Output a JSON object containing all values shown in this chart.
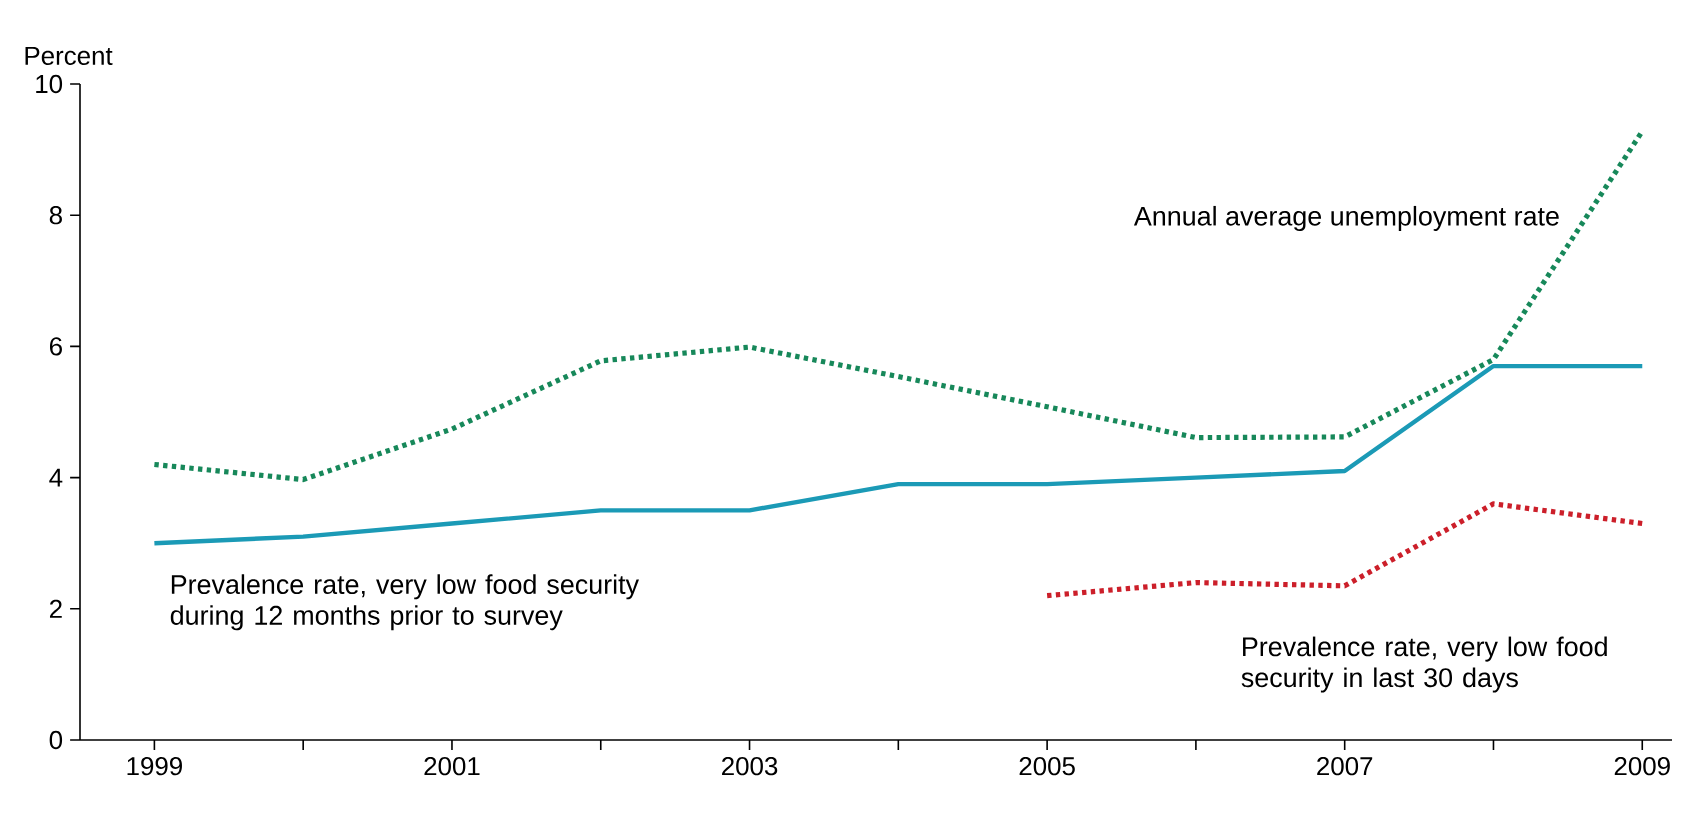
{
  "chart_data": {
    "type": "line",
    "ylabel": "Percent",
    "x": [
      1999,
      2000,
      2001,
      2002,
      2003,
      2004,
      2005,
      2006,
      2007,
      2008,
      2009
    ],
    "xlim": [
      1998.5,
      2009.2
    ],
    "ylim": [
      0,
      10
    ],
    "yticks": [
      0,
      2,
      4,
      6,
      8,
      10
    ],
    "xticks": [
      1999,
      {
        "value": 2000,
        "label": null
      },
      2001,
      {
        "value": 2002,
        "label": null
      },
      2003,
      {
        "value": 2004,
        "label": null
      },
      2005,
      {
        "value": 2006,
        "label": null
      },
      2007,
      {
        "value": 2008,
        "label": null
      },
      2009
    ],
    "grid": false,
    "series": [
      {
        "name": "Annual average unemployment rate",
        "color": "#17885a",
        "line_style": "dotted",
        "values": [
          4.2,
          3.97,
          4.74,
          5.78,
          5.99,
          5.54,
          5.08,
          4.61,
          4.62,
          5.8,
          9.28
        ]
      },
      {
        "name": "Prevalence rate, very low food security during 12 months prior to survey",
        "color": "#1b9ab6",
        "line_style": "solid",
        "values": [
          3.0,
          3.1,
          3.3,
          3.5,
          3.5,
          3.9,
          3.9,
          4.0,
          4.1,
          5.7,
          5.7
        ]
      },
      {
        "name": "Prevalence rate, very low food security in last 30 days",
        "color": "#cc1f2a",
        "line_style": "dotted",
        "values": [
          null,
          null,
          null,
          null,
          null,
          null,
          2.2,
          2.4,
          2.35,
          3.6,
          3.3
        ]
      }
    ]
  }
}
